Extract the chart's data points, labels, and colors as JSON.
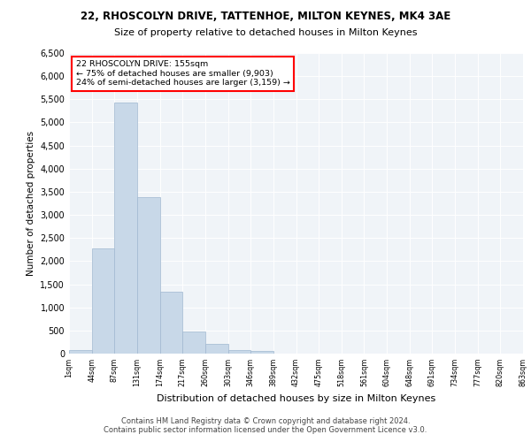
{
  "title1": "22, RHOSCOLYN DRIVE, TATTENHOE, MILTON KEYNES, MK4 3AE",
  "title2": "Size of property relative to detached houses in Milton Keynes",
  "xlabel": "Distribution of detached houses by size in Milton Keynes",
  "ylabel": "Number of detached properties",
  "bar_color": "#c8d8e8",
  "bar_edge_color": "#a0b8d0",
  "background_color": "#f0f4f8",
  "tick_labels": [
    "1sqm",
    "44sqm",
    "87sqm",
    "131sqm",
    "174sqm",
    "217sqm",
    "260sqm",
    "303sqm",
    "346sqm",
    "389sqm",
    "432sqm",
    "475sqm",
    "518sqm",
    "561sqm",
    "604sqm",
    "648sqm",
    "691sqm",
    "734sqm",
    "777sqm",
    "820sqm",
    "863sqm"
  ],
  "bar_values": [
    75,
    2270,
    5430,
    3380,
    1330,
    470,
    210,
    85,
    50,
    0,
    0,
    0,
    0,
    0,
    0,
    0,
    0,
    0,
    0,
    0
  ],
  "ylim": [
    0,
    6500
  ],
  "yticks": [
    0,
    500,
    1000,
    1500,
    2000,
    2500,
    3000,
    3500,
    4000,
    4500,
    5000,
    5500,
    6000,
    6500
  ],
  "annotation_title": "22 RHOSCOLYN DRIVE: 155sqm",
  "annotation_line1": "← 75% of detached houses are smaller (9,903)",
  "annotation_line2": "24% of semi-detached houses are larger (3,159) →",
  "annotation_box_color": "white",
  "annotation_box_edge_color": "red",
  "footer_line1": "Contains HM Land Registry data © Crown copyright and database right 2024.",
  "footer_line2": "Contains public sector information licensed under the Open Government Licence v3.0."
}
